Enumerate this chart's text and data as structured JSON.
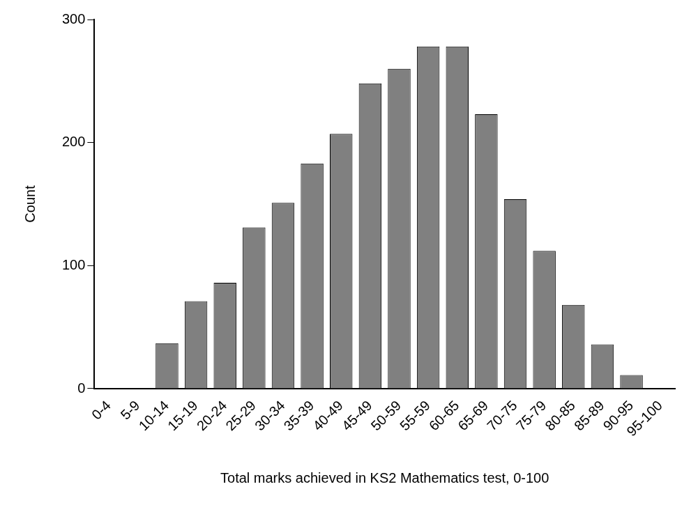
{
  "chart_data": {
    "type": "bar",
    "xlabel": "Total marks achieved in KS2 Mathematics test, 0-100",
    "ylabel": "Count",
    "categories": [
      "0-4",
      "5-9",
      "10-14",
      "15-19",
      "20-24",
      "25-29",
      "30-34",
      "35-39",
      "40-49",
      "45-49",
      "50-59",
      "55-59",
      "60-65",
      "65-69",
      "70-75",
      "75-79",
      "80-85",
      "85-89",
      "90-95",
      "95-100"
    ],
    "values": [
      0,
      0,
      37,
      71,
      86,
      131,
      151,
      183,
      207,
      248,
      260,
      278,
      278,
      223,
      154,
      112,
      68,
      36,
      11,
      0
    ],
    "color": "#808080",
    "ylim": [
      0,
      300
    ],
    "yticks": [
      0,
      100,
      200,
      300
    ],
    "grid": false,
    "legend": false
  }
}
